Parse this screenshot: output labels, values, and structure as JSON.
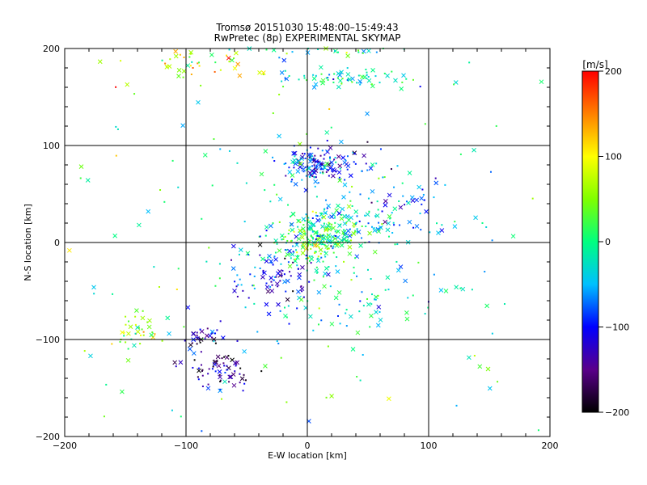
{
  "chart_data": {
    "type": "scatter",
    "title": "Tromsø 20151030 15:48:00–15:49:43",
    "subtitle": "RwPretec (8p) EXPERIMENTAL SKYMAP",
    "xlabel": "E-W location [km]",
    "ylabel": "N-S location [km]",
    "xlim": [
      -200,
      200
    ],
    "ylim": [
      -200,
      200
    ],
    "x_ticks": [
      "−200",
      "−100",
      "0",
      "100",
      "200"
    ],
    "y_ticks": [
      "−200",
      "−100",
      "0",
      "100",
      "200"
    ],
    "grid": true,
    "markers": [
      "dot",
      "x"
    ],
    "colorbar": {
      "label": "[m/s]",
      "min": -200,
      "max": 200,
      "ticks": [
        "200",
        "100",
        "0",
        "−100",
        "−200"
      ],
      "colormap": [
        "#000000",
        "#5a008a",
        "#0000ff",
        "#00c0ff",
        "#00ff80",
        "#80ff00",
        "#ffff00",
        "#ff8000",
        "#ff0000"
      ]
    },
    "clusters": [
      {
        "center": [
          10,
          80
        ],
        "spread": [
          18,
          8
        ],
        "velocity": -90,
        "count": 150
      },
      {
        "center": [
          5,
          5
        ],
        "spread": [
          18,
          14
        ],
        "velocity": 10,
        "count": 230
      },
      {
        "center": [
          40,
          20
        ],
        "spread": [
          25,
          12
        ],
        "velocity": -50,
        "count": 80
      },
      {
        "center": [
          -70,
          -130
        ],
        "spread": [
          15,
          12
        ],
        "velocity": -150,
        "count": 70
      },
      {
        "center": [
          -85,
          -95
        ],
        "spread": [
          10,
          8
        ],
        "velocity": -110,
        "count": 30
      },
      {
        "center": [
          -30,
          -35
        ],
        "spread": [
          20,
          18
        ],
        "velocity": -100,
        "count": 90
      },
      {
        "center": [
          -140,
          -95
        ],
        "spread": [
          10,
          10
        ],
        "velocity": 60,
        "count": 40
      },
      {
        "center": [
          -95,
          180
        ],
        "spread": [
          30,
          10
        ],
        "velocity": 90,
        "count": 45
      },
      {
        "center": [
          30,
          170
        ],
        "spread": [
          28,
          5
        ],
        "velocity": -20,
        "count": 70
      },
      {
        "center": [
          20,
          198
        ],
        "spread": [
          35,
          3
        ],
        "velocity": -10,
        "count": 35
      },
      {
        "center": [
          40,
          -50
        ],
        "spread": [
          40,
          30
        ],
        "velocity": -30,
        "count": 80
      },
      {
        "center": [
          80,
          40
        ],
        "spread": [
          30,
          20
        ],
        "velocity": -80,
        "count": 40
      },
      {
        "center": [
          0,
          0
        ],
        "spread": [
          120,
          110
        ],
        "velocity": 0,
        "count": 200
      }
    ]
  }
}
